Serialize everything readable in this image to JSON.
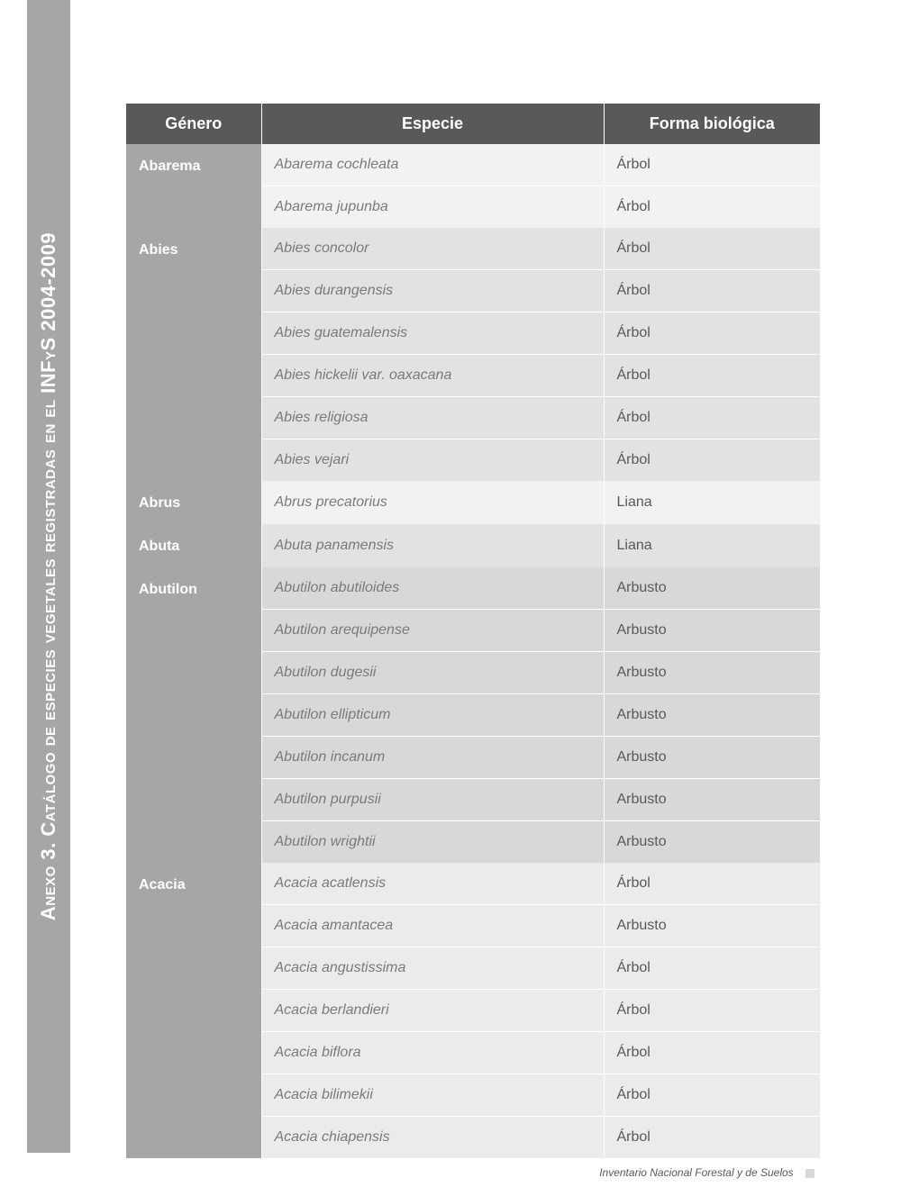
{
  "sidebar": {
    "title": "Anexo 3. Catálogo de especies vegetales registradas en el INFyS 2004-2009"
  },
  "table": {
    "headers": {
      "genero": "Género",
      "especie": "Especie",
      "forma": "Forma biológica"
    },
    "groups": [
      {
        "genero": "Abarema",
        "shade": "g0",
        "rows": [
          {
            "especie": "Abarema cochleata",
            "forma": "Árbol"
          },
          {
            "especie": "Abarema jupunba",
            "forma": "Árbol"
          }
        ]
      },
      {
        "genero": "Abies",
        "shade": "g1",
        "rows": [
          {
            "especie": "Abies concolor",
            "forma": "Árbol"
          },
          {
            "especie": "Abies durangensis",
            "forma": "Árbol"
          },
          {
            "especie": "Abies guatemalensis",
            "forma": "Árbol"
          },
          {
            "especie": "Abies hickelii var. oaxacana",
            "forma": "Árbol"
          },
          {
            "especie": "Abies religiosa",
            "forma": "Árbol"
          },
          {
            "especie": "Abies vejari",
            "forma": "Árbol"
          }
        ]
      },
      {
        "genero": "Abrus",
        "shade": "g2",
        "rows": [
          {
            "especie": "Abrus precatorius",
            "forma": "Liana"
          }
        ]
      },
      {
        "genero": "Abuta",
        "shade": "g3",
        "rows": [
          {
            "especie": "Abuta panamensis",
            "forma": "Liana"
          }
        ]
      },
      {
        "genero": "Abutilon",
        "shade": "g4",
        "rows": [
          {
            "especie": "Abutilon abutiloides",
            "forma": "Arbusto"
          },
          {
            "especie": "Abutilon arequipense",
            "forma": "Arbusto"
          },
          {
            "especie": "Abutilon dugesii",
            "forma": "Arbusto"
          },
          {
            "especie": "Abutilon ellipticum",
            "forma": "Arbusto"
          },
          {
            "especie": "Abutilon incanum",
            "forma": "Arbusto"
          },
          {
            "especie": "Abutilon purpusii",
            "forma": "Arbusto"
          },
          {
            "especie": "Abutilon wrightii",
            "forma": "Arbusto"
          }
        ]
      },
      {
        "genero": "Acacia",
        "shade": "g5",
        "rows": [
          {
            "especie": "Acacia acatlensis",
            "forma": "Árbol"
          },
          {
            "especie": "Acacia amantacea",
            "forma": "Arbusto"
          },
          {
            "especie": "Acacia angustissima",
            "forma": "Árbol"
          },
          {
            "especie": "Acacia berlandieri",
            "forma": "Árbol"
          },
          {
            "especie": "Acacia biflora",
            "forma": "Árbol"
          },
          {
            "especie": "Acacia bilimekii",
            "forma": "Árbol"
          },
          {
            "especie": "Acacia chiapensis",
            "forma": "Árbol"
          }
        ]
      }
    ]
  },
  "footer": {
    "text": "Inventario Nacional Forestal y de Suelos"
  }
}
